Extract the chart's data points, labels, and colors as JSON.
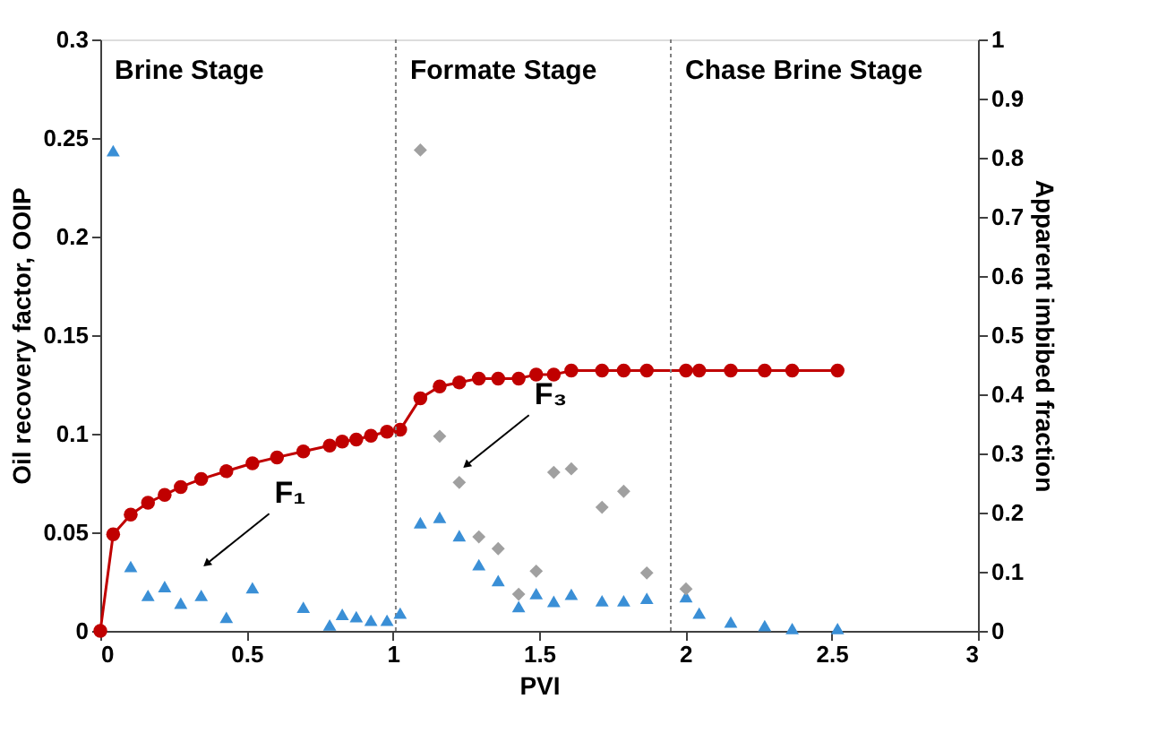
{
  "chart_data": {
    "type": "line",
    "xlabel": "PVI",
    "ylabel": "Oil recovery factor, OOIP",
    "y2label": "Apparent imbibed fraction",
    "xlim": [
      0,
      3
    ],
    "xticks": [
      0,
      0.5,
      1,
      1.5,
      2,
      2.5,
      3
    ],
    "ylim": [
      0,
      0.3
    ],
    "yticks": [
      0,
      0.05,
      0.1,
      0.15,
      0.2,
      0.25,
      0.3
    ],
    "y2lim": [
      0,
      1
    ],
    "y2ticks": [
      0,
      0.1,
      0.2,
      0.3,
      0.4,
      0.5,
      0.6,
      0.7,
      0.8,
      0.9,
      1
    ],
    "grid": false,
    "series": [
      {
        "type": "line",
        "marker": "circle",
        "color": "#c00000",
        "x": [
          0,
          0.044,
          0.104,
          0.163,
          0.22,
          0.275,
          0.345,
          0.431,
          0.52,
          0.604,
          0.694,
          0.784,
          0.827,
          0.875,
          0.925,
          0.98,
          1.025,
          1.094,
          1.16,
          1.227,
          1.294,
          1.36,
          1.43,
          1.49,
          1.55,
          1.61,
          1.715,
          1.789,
          1.868,
          2.002,
          2.047,
          2.155,
          2.271,
          2.365,
          2.52
        ],
        "values": [
          0,
          0.049,
          0.059,
          0.065,
          0.069,
          0.073,
          0.077,
          0.081,
          0.085,
          0.088,
          0.091,
          0.094,
          0.096,
          0.097,
          0.099,
          0.101,
          0.102,
          0.118,
          0.124,
          0.126,
          0.128,
          0.128,
          0.128,
          0.13,
          0.13,
          0.132,
          0.132,
          0.132,
          0.132,
          0.132,
          0.132,
          0.132,
          0.132,
          0.132,
          0.132
        ]
      },
      {
        "type": "scatter",
        "marker": "triangle",
        "axis": "y2",
        "color": "#3a8fd6",
        "x": [
          0.044,
          0.104,
          0.163,
          0.22,
          0.275,
          0.345,
          0.431,
          0.52,
          0.694,
          0.784,
          0.827,
          0.875,
          0.925,
          0.98,
          1.025,
          1.094,
          1.16,
          1.227,
          1.294,
          1.36,
          1.43,
          1.49,
          1.55,
          1.61,
          1.715,
          1.789,
          1.868,
          2.002,
          2.047,
          2.155,
          2.271,
          2.365,
          2.52
        ],
        "values": [
          0.812,
          0.109,
          0.06,
          0.075,
          0.047,
          0.06,
          0.023,
          0.073,
          0.04,
          0.01,
          0.028,
          0.024,
          0.018,
          0.018,
          0.03,
          0.183,
          0.192,
          0.161,
          0.112,
          0.085,
          0.041,
          0.063,
          0.05,
          0.062,
          0.051,
          0.051,
          0.055,
          0.058,
          0.03,
          0.015,
          0.009,
          0.004,
          0.004
        ]
      },
      {
        "type": "scatter",
        "marker": "diamond",
        "axis": "y2",
        "color": "#a0a0a0",
        "x": [
          1.094,
          1.16,
          1.227,
          1.294,
          1.36,
          1.43,
          1.49,
          1.55,
          1.61,
          1.715,
          1.789,
          1.868,
          2.002
        ],
        "values": [
          0.813,
          0.329,
          0.251,
          0.159,
          0.139,
          0.062,
          0.101,
          0.268,
          0.274,
          0.209,
          0.236,
          0.098,
          0.071
        ]
      }
    ],
    "ref_lines": [
      {
        "axis": "x",
        "value": 1.01,
        "color": "#808080",
        "line_style": "dotted"
      },
      {
        "axis": "x",
        "value": 1.95,
        "color": "#808080",
        "line_style": "dotted"
      }
    ],
    "annotations": [
      "Brine Stage",
      "Formate Stage",
      "Chase Brine Stage",
      {
        "text": "F₁",
        "x": 0.363,
        "y": 0.034
      },
      {
        "text": "F₃",
        "x": 1.251,
        "y": 0.084
      }
    ]
  }
}
